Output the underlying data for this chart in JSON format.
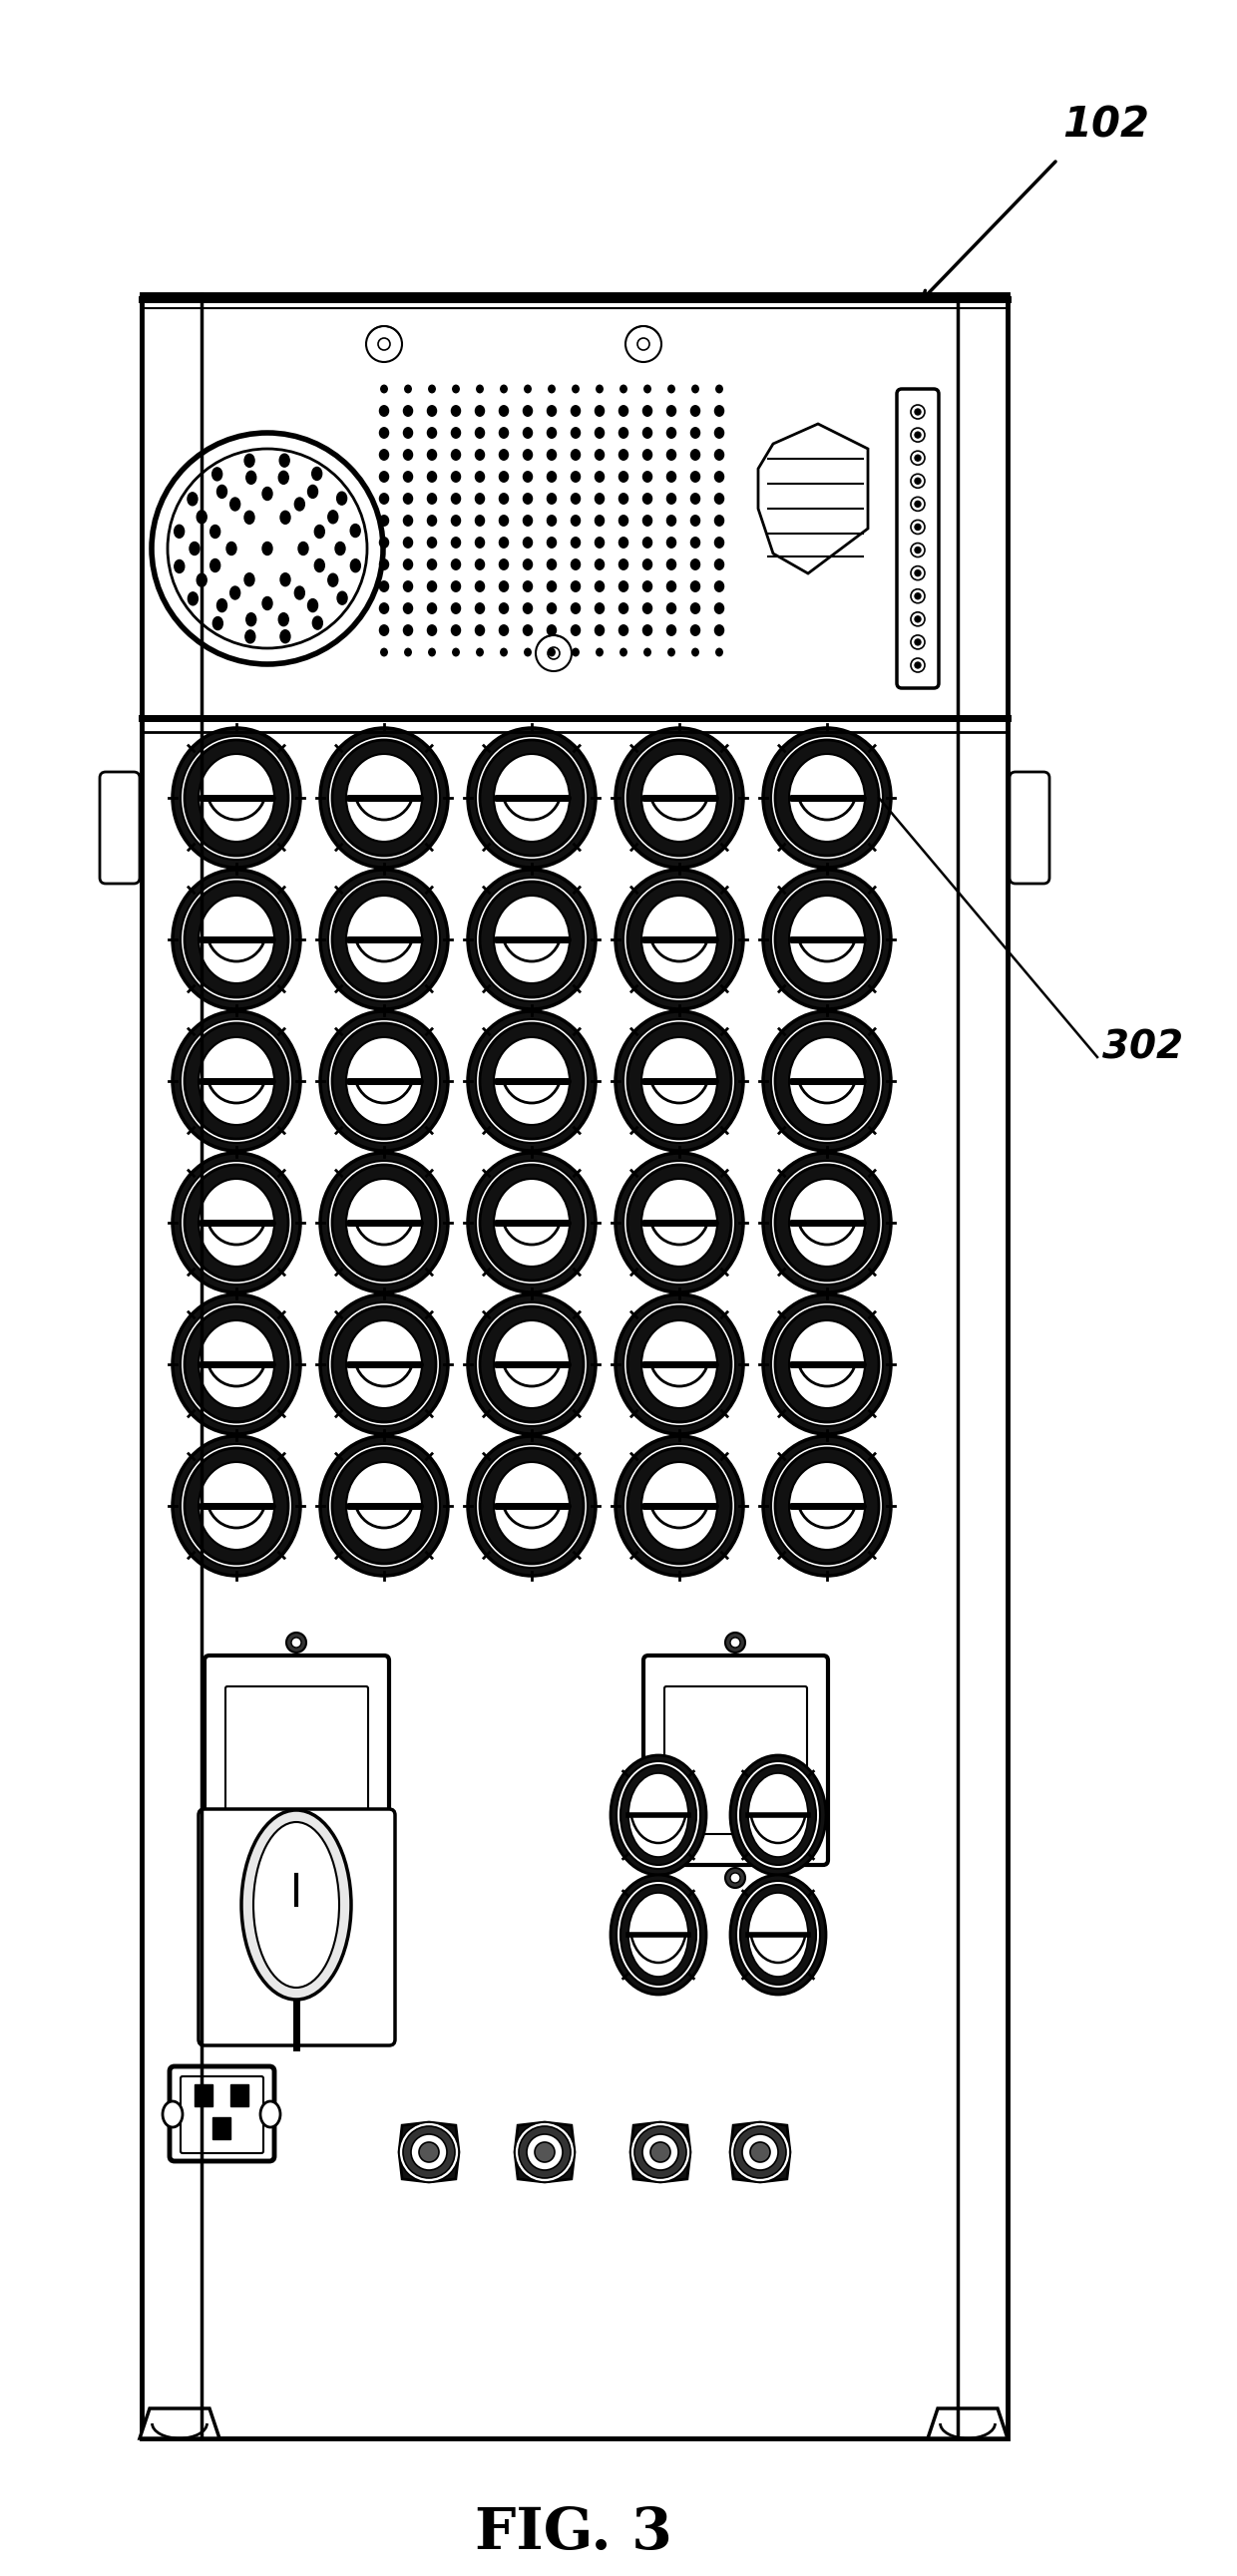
{
  "fig_width": 12.4,
  "fig_height": 25.83,
  "bg_color": "#ffffff",
  "line_color": "#000000",
  "title": "FIG. 3",
  "label_102": "102",
  "label_302": "302"
}
